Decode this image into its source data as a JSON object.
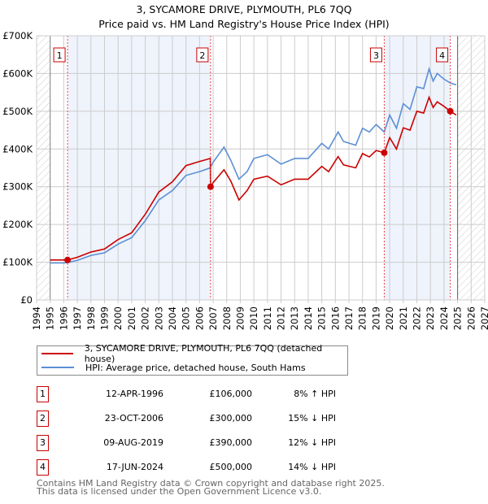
{
  "title": "3, SYCAMORE DRIVE, PLYMOUTH, PL6 7QQ",
  "subtitle": "Price paid vs. HM Land Registry's House Price Index (HPI)",
  "colors": {
    "property": "#cc0000",
    "hpi": "#5b8fd4",
    "shade": "#eef3fc"
  },
  "chart_data": {
    "type": "line",
    "title": "3, SYCAMORE DRIVE, PLYMOUTH, PL6 7QQ — Price paid vs. HM Land Registry's House Price Index (HPI)",
    "xlim": [
      1994,
      2027
    ],
    "ylim": [
      0,
      700000
    ],
    "y_ticks": [
      "£0",
      "£100K",
      "£200K",
      "£300K",
      "£400K",
      "£500K",
      "£600K",
      "£700K"
    ],
    "y_tick_values": [
      0,
      100000,
      200000,
      300000,
      400000,
      500000,
      600000,
      700000
    ],
    "x_ticks": [
      "1994",
      "1995",
      "1996",
      "1997",
      "1998",
      "1999",
      "2000",
      "2001",
      "2002",
      "2003",
      "2004",
      "2005",
      "2006",
      "2007",
      "2008",
      "2009",
      "2010",
      "2011",
      "2012",
      "2013",
      "2014",
      "2015",
      "2016",
      "2017",
      "2018",
      "2019",
      "2020",
      "2021",
      "2022",
      "2023",
      "2024",
      "2025",
      "2026",
      "2027"
    ],
    "grid": true,
    "x": [
      1995,
      1996,
      1996.28,
      1997,
      1998,
      1999,
      2000,
      2001,
      2002,
      2003,
      2004,
      2005,
      2006,
      2006.79,
      2006.81,
      2007,
      2007.8,
      2008.3,
      2008.9,
      2009.5,
      2010,
      2011,
      2012,
      2013,
      2014,
      2015,
      2015.5,
      2016.2,
      2016.6,
      2017.5,
      2018,
      2018.5,
      2019,
      2019.6,
      2020,
      2020.5,
      2021,
      2021.5,
      2022,
      2022.5,
      2022.9,
      2023.2,
      2023.5,
      2024,
      2024.46,
      2024.9
    ],
    "series": [
      {
        "name": "3, SYCAMORE DRIVE, PLYMOUTH, PL6 7QQ (detached house)",
        "values": [
          106,
          106,
          106,
          113,
          127,
          135,
          160,
          178,
          227,
          286,
          313,
          356,
          367,
          375,
          300,
          311,
          345,
          315,
          265,
          290,
          320,
          328,
          305,
          320,
          320,
          354,
          340,
          380,
          358,
          350,
          388,
          379,
          396,
          390,
          430,
          400,
          456,
          450,
          500,
          495,
          537,
          510,
          525,
          513,
          500,
          490
        ]
      },
      {
        "name": "HPI: Average price, detached house, South Hams",
        "values": [
          98,
          98,
          99,
          105,
          118,
          125,
          148,
          165,
          210,
          265,
          290,
          330,
          340,
          350,
          352,
          365,
          405,
          370,
          320,
          340,
          375,
          385,
          360,
          375,
          375,
          415,
          400,
          445,
          420,
          410,
          455,
          445,
          465,
          445,
          490,
          455,
          520,
          505,
          565,
          560,
          612,
          580,
          600,
          585,
          575,
          570
        ]
      }
    ],
    "value_unit": "£K",
    "hatched_ranges": [
      [
        1994,
        1995
      ],
      [
        2025,
        2027
      ]
    ],
    "shaded_ranges": [
      [
        1996.28,
        2006.81
      ],
      [
        2019.6,
        2024.46
      ]
    ],
    "sales": [
      {
        "id": "1",
        "x": 1996.28,
        "price": 106
      },
      {
        "id": "2",
        "x": 2006.81,
        "price": 300
      },
      {
        "id": "3",
        "x": 2019.6,
        "price": 390
      },
      {
        "id": "4",
        "x": 2024.46,
        "price": 500
      }
    ]
  },
  "legend": {
    "property": "3, SYCAMORE DRIVE, PLYMOUTH, PL6 7QQ (detached house)",
    "hpi": "HPI: Average price, detached house, South Hams"
  },
  "transactions": [
    {
      "id": "1",
      "date": "12-APR-1996",
      "price": "£106,000",
      "hpi": "8% ↑ HPI"
    },
    {
      "id": "2",
      "date": "23-OCT-2006",
      "price": "£300,000",
      "hpi": "15% ↓ HPI"
    },
    {
      "id": "3",
      "date": "09-AUG-2019",
      "price": "£390,000",
      "hpi": "12% ↓ HPI"
    },
    {
      "id": "4",
      "date": "17-JUN-2024",
      "price": "£500,000",
      "hpi": "14% ↓ HPI"
    }
  ],
  "footer": {
    "line1": "Contains HM Land Registry data © Crown copyright and database right 2025.",
    "line2": "This data is licensed under the Open Government Licence v3.0."
  }
}
